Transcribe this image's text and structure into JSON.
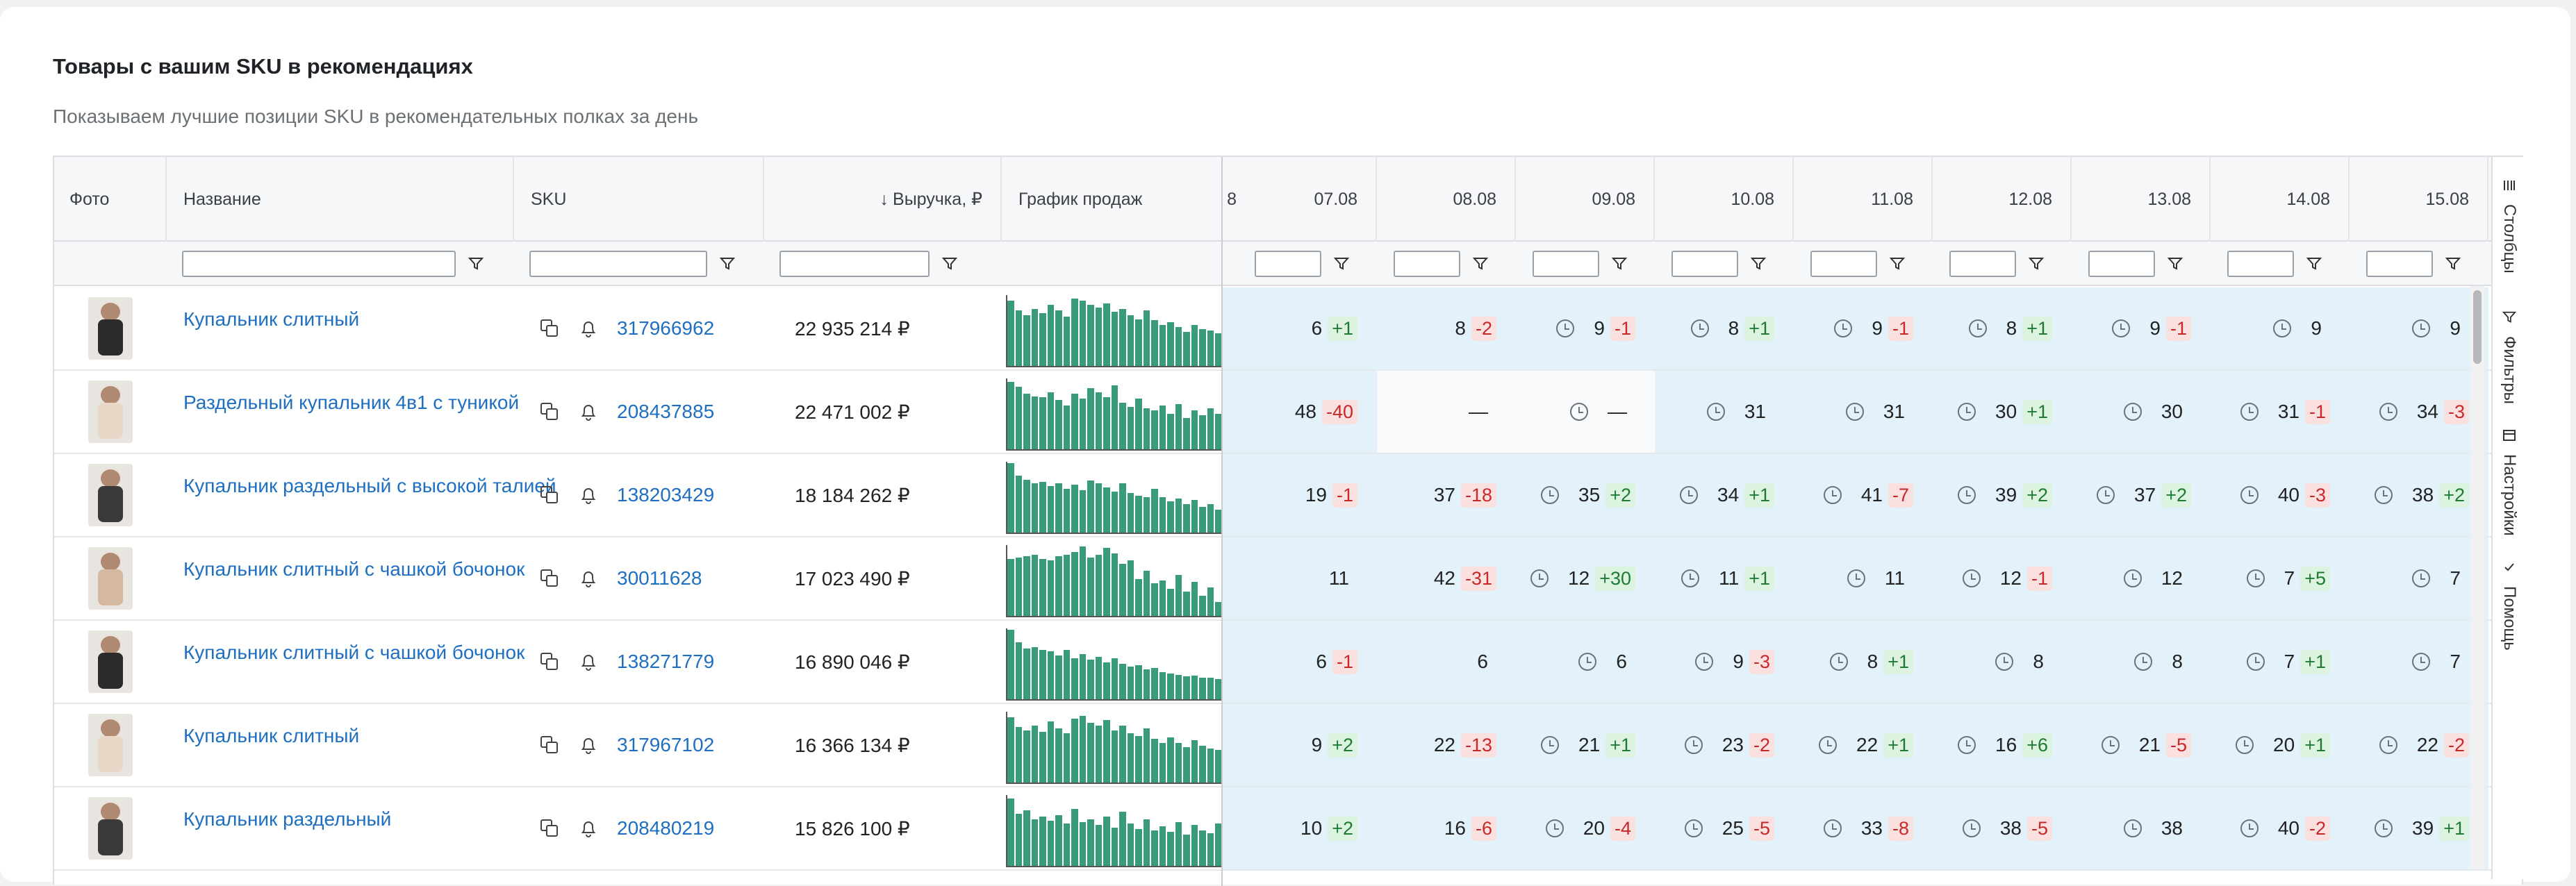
{
  "title": "Товары с вашим SKU в рекомендациях",
  "subtitle": "Показываем лучшие позиции SKU в рекомендательных полках за день",
  "columns": {
    "photo": "Фото",
    "name": "Название",
    "sku": "SKU",
    "revenue": "Выручка, ₽",
    "sort_arrow": "↓",
    "chart": "График продаж",
    "clipped_date": "8",
    "dates": [
      "07.08",
      "08.08",
      "09.08",
      "10.08",
      "11.08",
      "12.08",
      "13.08",
      "14.08",
      "15.08"
    ]
  },
  "side_tabs": [
    {
      "label": "Столбцы",
      "icon": "columns-icon"
    },
    {
      "label": "Фильтры",
      "icon": "filter-icon"
    },
    {
      "label": "Настройки",
      "icon": "settings-icon"
    },
    {
      "label": "Помощь",
      "icon": "help-icon"
    }
  ],
  "colors": {
    "accent_link": "#1f6fc1",
    "cell_blue": "#e3f1fb",
    "spark_green": "#3a9b7a",
    "up_bg": "#dcf3df",
    "down_bg": "#fbe0e0"
  },
  "rows": [
    {
      "name": "Купальник слитный",
      "sku": "317966962",
      "revenue": "22 935 214 ₽",
      "sales": [
        0.92,
        0.78,
        0.72,
        0.8,
        0.75,
        0.86,
        0.78,
        0.7,
        0.95,
        0.92,
        0.86,
        0.82,
        0.88,
        0.76,
        0.8,
        0.72,
        0.66,
        0.78,
        0.65,
        0.58,
        0.62,
        0.55,
        0.48,
        0.58,
        0.52,
        0.5,
        0.46,
        0.56
      ],
      "days": [
        {
          "v": "6",
          "d": "+1",
          "t": "up",
          "c": false,
          "bg": "blue"
        },
        {
          "v": "8",
          "d": "-2",
          "t": "down",
          "c": false,
          "bg": "blue"
        },
        {
          "v": "9",
          "d": "-1",
          "t": "down",
          "c": true,
          "bg": "blue"
        },
        {
          "v": "8",
          "d": "+1",
          "t": "up",
          "c": true,
          "bg": "blue"
        },
        {
          "v": "9",
          "d": "-1",
          "t": "down",
          "c": true,
          "bg": "blue"
        },
        {
          "v": "8",
          "d": "+1",
          "t": "up",
          "c": true,
          "bg": "blue"
        },
        {
          "v": "9",
          "d": "-1",
          "t": "down",
          "c": true,
          "bg": "blue"
        },
        {
          "v": "9",
          "d": "",
          "t": "",
          "c": true,
          "bg": "blue"
        },
        {
          "v": "9",
          "d": "",
          "t": "",
          "c": true,
          "bg": "blue"
        }
      ]
    },
    {
      "name": "Раздельный купальник 4в1 с туникой",
      "sku": "208437885",
      "revenue": "22 471 002 ₽",
      "sales": [
        0.95,
        0.88,
        0.78,
        0.75,
        0.74,
        0.8,
        0.7,
        0.62,
        0.78,
        0.72,
        0.86,
        0.8,
        0.74,
        0.9,
        0.66,
        0.6,
        0.72,
        0.58,
        0.55,
        0.62,
        0.5,
        0.64,
        0.44,
        0.55,
        0.48,
        0.58,
        0.5,
        0.52
      ],
      "days": [
        {
          "v": "48",
          "d": "-40",
          "t": "down",
          "c": false,
          "bg": "blue"
        },
        {
          "v": "—",
          "d": "",
          "t": "",
          "c": false,
          "bg": "white"
        },
        {
          "v": "—",
          "d": "",
          "t": "",
          "c": true,
          "bg": "white"
        },
        {
          "v": "31",
          "d": "",
          "t": "",
          "c": true,
          "bg": "blue"
        },
        {
          "v": "31",
          "d": "",
          "t": "",
          "c": true,
          "bg": "blue"
        },
        {
          "v": "30",
          "d": "+1",
          "t": "up",
          "c": true,
          "bg": "blue"
        },
        {
          "v": "30",
          "d": "",
          "t": "",
          "c": true,
          "bg": "blue"
        },
        {
          "v": "31",
          "d": "-1",
          "t": "down",
          "c": true,
          "bg": "blue"
        },
        {
          "v": "34",
          "d": "-3",
          "t": "down",
          "c": true,
          "bg": "blue"
        }
      ]
    },
    {
      "name": "Купальник раздельный с высокой талией",
      "sku": "138203429",
      "revenue": "18 184 262 ₽",
      "sales": [
        0.98,
        0.8,
        0.75,
        0.7,
        0.72,
        0.66,
        0.7,
        0.62,
        0.68,
        0.6,
        0.74,
        0.7,
        0.64,
        0.58,
        0.7,
        0.56,
        0.52,
        0.5,
        0.62,
        0.5,
        0.44,
        0.48,
        0.4,
        0.46,
        0.36,
        0.4,
        0.32,
        0.38
      ],
      "days": [
        {
          "v": "19",
          "d": "-1",
          "t": "down",
          "c": false,
          "bg": "blue"
        },
        {
          "v": "37",
          "d": "-18",
          "t": "down",
          "c": false,
          "bg": "blue"
        },
        {
          "v": "35",
          "d": "+2",
          "t": "up",
          "c": true,
          "bg": "blue"
        },
        {
          "v": "34",
          "d": "+1",
          "t": "up",
          "c": true,
          "bg": "blue"
        },
        {
          "v": "41",
          "d": "-7",
          "t": "down",
          "c": true,
          "bg": "blue"
        },
        {
          "v": "39",
          "d": "+2",
          "t": "up",
          "c": true,
          "bg": "blue"
        },
        {
          "v": "37",
          "d": "+2",
          "t": "up",
          "c": true,
          "bg": "blue"
        },
        {
          "v": "40",
          "d": "-3",
          "t": "down",
          "c": true,
          "bg": "blue"
        },
        {
          "v": "38",
          "d": "+2",
          "t": "up",
          "c": true,
          "bg": "blue"
        }
      ]
    },
    {
      "name": "Купальник слитный с чашкой бочонок",
      "sku": "30011628",
      "revenue": "17 023 490 ₽",
      "sales": [
        0.8,
        0.82,
        0.84,
        0.86,
        0.8,
        0.78,
        0.84,
        0.86,
        0.9,
        0.98,
        0.82,
        0.86,
        0.96,
        0.88,
        0.74,
        0.78,
        0.52,
        0.64,
        0.46,
        0.5,
        0.38,
        0.58,
        0.34,
        0.48,
        0.28,
        0.4,
        0.2,
        0.36
      ],
      "days": [
        {
          "v": "11",
          "d": "",
          "t": "",
          "c": false,
          "bg": "blue"
        },
        {
          "v": "42",
          "d": "-31",
          "t": "down",
          "c": false,
          "bg": "blue"
        },
        {
          "v": "12",
          "d": "+30",
          "t": "up",
          "c": true,
          "bg": "blue"
        },
        {
          "v": "11",
          "d": "+1",
          "t": "up",
          "c": true,
          "bg": "blue"
        },
        {
          "v": "11",
          "d": "",
          "t": "",
          "c": true,
          "bg": "blue"
        },
        {
          "v": "12",
          "d": "-1",
          "t": "down",
          "c": true,
          "bg": "blue"
        },
        {
          "v": "12",
          "d": "",
          "t": "",
          "c": true,
          "bg": "blue"
        },
        {
          "v": "7",
          "d": "+5",
          "t": "up",
          "c": true,
          "bg": "blue"
        },
        {
          "v": "7",
          "d": "",
          "t": "",
          "c": true,
          "bg": "blue"
        }
      ]
    },
    {
      "name": "Купальник слитный с чашкой бочонок",
      "sku": "138271779",
      "revenue": "16 890 046 ₽",
      "sales": [
        0.98,
        0.8,
        0.72,
        0.74,
        0.7,
        0.68,
        0.62,
        0.7,
        0.58,
        0.64,
        0.56,
        0.6,
        0.52,
        0.58,
        0.5,
        0.46,
        0.48,
        0.42,
        0.44,
        0.38,
        0.36,
        0.34,
        0.32,
        0.33,
        0.3,
        0.3,
        0.28,
        0.27
      ],
      "days": [
        {
          "v": "6",
          "d": "-1",
          "t": "down",
          "c": false,
          "bg": "blue"
        },
        {
          "v": "6",
          "d": "",
          "t": "",
          "c": false,
          "bg": "blue"
        },
        {
          "v": "6",
          "d": "",
          "t": "",
          "c": true,
          "bg": "blue"
        },
        {
          "v": "9",
          "d": "-3",
          "t": "down",
          "c": true,
          "bg": "blue"
        },
        {
          "v": "8",
          "d": "+1",
          "t": "up",
          "c": true,
          "bg": "blue"
        },
        {
          "v": "8",
          "d": "",
          "t": "",
          "c": true,
          "bg": "blue"
        },
        {
          "v": "8",
          "d": "",
          "t": "",
          "c": true,
          "bg": "blue"
        },
        {
          "v": "7",
          "d": "+1",
          "t": "up",
          "c": true,
          "bg": "blue"
        },
        {
          "v": "7",
          "d": "",
          "t": "",
          "c": true,
          "bg": "blue"
        }
      ]
    },
    {
      "name": "Купальник слитный",
      "sku": "317967102",
      "revenue": "16 366 134 ₽",
      "sales": [
        0.92,
        0.78,
        0.74,
        0.8,
        0.72,
        0.86,
        0.76,
        0.7,
        0.9,
        0.94,
        0.84,
        0.8,
        0.88,
        0.74,
        0.8,
        0.7,
        0.66,
        0.76,
        0.62,
        0.56,
        0.64,
        0.56,
        0.5,
        0.6,
        0.52,
        0.48,
        0.46,
        0.54
      ],
      "days": [
        {
          "v": "9",
          "d": "+2",
          "t": "up",
          "c": false,
          "bg": "blue"
        },
        {
          "v": "22",
          "d": "-13",
          "t": "down",
          "c": false,
          "bg": "blue"
        },
        {
          "v": "21",
          "d": "+1",
          "t": "up",
          "c": true,
          "bg": "blue"
        },
        {
          "v": "23",
          "d": "-2",
          "t": "down",
          "c": true,
          "bg": "blue"
        },
        {
          "v": "22",
          "d": "+1",
          "t": "up",
          "c": true,
          "bg": "blue"
        },
        {
          "v": "16",
          "d": "+6",
          "t": "up",
          "c": true,
          "bg": "blue"
        },
        {
          "v": "21",
          "d": "-5",
          "t": "down",
          "c": true,
          "bg": "blue"
        },
        {
          "v": "20",
          "d": "+1",
          "t": "up",
          "c": true,
          "bg": "blue"
        },
        {
          "v": "22",
          "d": "-2",
          "t": "down",
          "c": true,
          "bg": "blue"
        }
      ]
    },
    {
      "name": "Купальник раздельный",
      "sku": "208480219",
      "revenue": "15 826 100 ₽",
      "sales": [
        0.95,
        0.74,
        0.78,
        0.66,
        0.7,
        0.64,
        0.72,
        0.6,
        0.8,
        0.62,
        0.66,
        0.58,
        0.7,
        0.54,
        0.76,
        0.6,
        0.52,
        0.66,
        0.5,
        0.56,
        0.48,
        0.62,
        0.44,
        0.58,
        0.5,
        0.46,
        0.6,
        0.52
      ],
      "days": [
        {
          "v": "10",
          "d": "+2",
          "t": "up",
          "c": false,
          "bg": "blue"
        },
        {
          "v": "16",
          "d": "-6",
          "t": "down",
          "c": false,
          "bg": "blue"
        },
        {
          "v": "20",
          "d": "-4",
          "t": "down",
          "c": true,
          "bg": "blue"
        },
        {
          "v": "25",
          "d": "-5",
          "t": "down",
          "c": true,
          "bg": "blue"
        },
        {
          "v": "33",
          "d": "-8",
          "t": "down",
          "c": true,
          "bg": "blue"
        },
        {
          "v": "38",
          "d": "-5",
          "t": "down",
          "c": true,
          "bg": "blue"
        },
        {
          "v": "38",
          "d": "",
          "t": "",
          "c": true,
          "bg": "blue"
        },
        {
          "v": "40",
          "d": "-2",
          "t": "down",
          "c": true,
          "bg": "blue"
        },
        {
          "v": "39",
          "d": "+1",
          "t": "up",
          "c": true,
          "bg": "blue"
        }
      ]
    }
  ]
}
